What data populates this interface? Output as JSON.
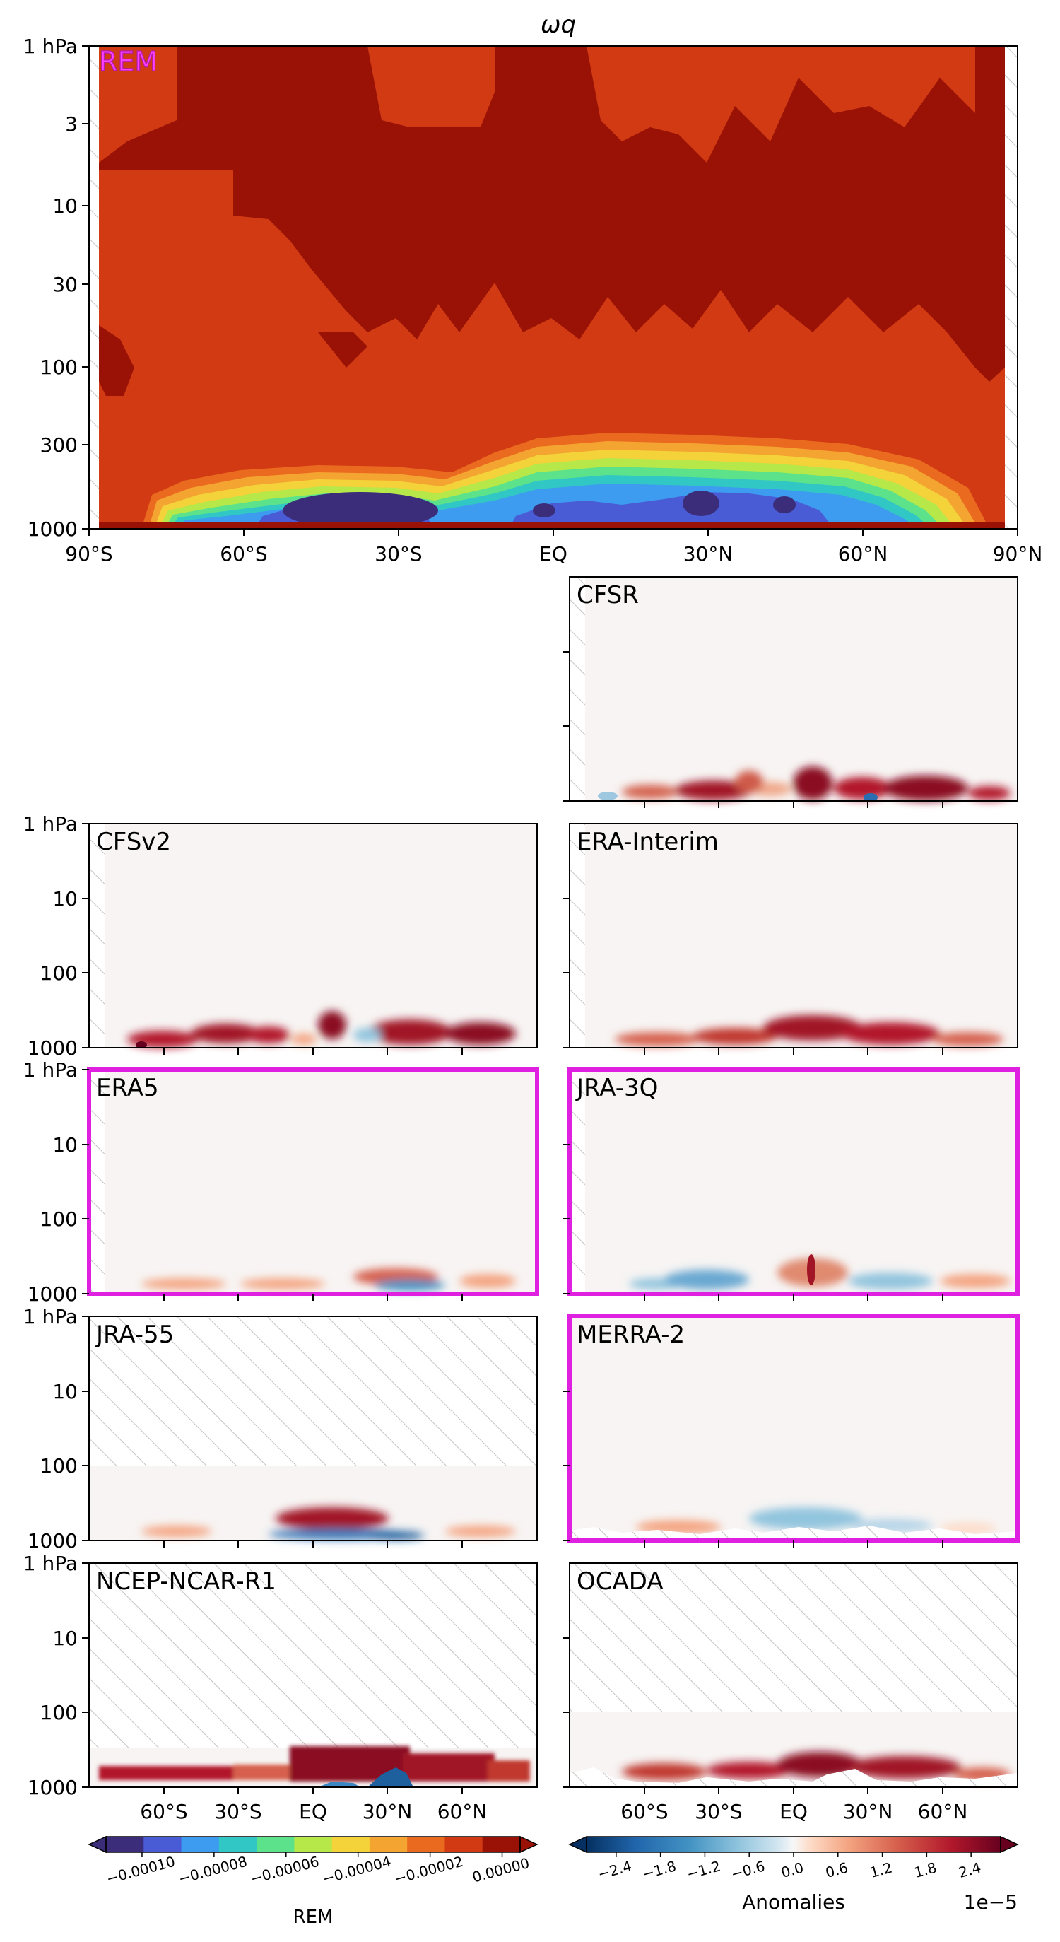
{
  "chart_data": {
    "type": "heatmap",
    "title": "ωq",
    "x_ticks": [
      "90°S",
      "60°S",
      "30°S",
      "EQ",
      "30°N",
      "60°N",
      "90°N"
    ],
    "x_ticks_small": [
      "60°S",
      "30°S",
      "EQ",
      "30°N",
      "60°N"
    ],
    "y_ticks_main": [
      "1 hPa",
      "3",
      "10",
      "30",
      "100",
      "300",
      "1000"
    ],
    "y_ticks_small": [
      "1 hPa",
      "10",
      "100",
      "1000"
    ],
    "panels": [
      {
        "name": "REM",
        "type": "filled-contour",
        "highlighted": true
      },
      {
        "name": "CFSR",
        "highlighted": false,
        "missing": "none"
      },
      {
        "name": "CFSv2",
        "highlighted": false,
        "missing": "none"
      },
      {
        "name": "ERA-Interim",
        "highlighted": false,
        "missing": "none"
      },
      {
        "name": "ERA5",
        "highlighted": true,
        "missing": "none"
      },
      {
        "name": "JRA-3Q",
        "highlighted": true,
        "missing": "none"
      },
      {
        "name": "JRA-55",
        "highlighted": false,
        "missing": "above 100 hPa"
      },
      {
        "name": "MERRA-2",
        "highlighted": true,
        "missing": "near surface"
      },
      {
        "name": "NCEP-NCAR-R1",
        "highlighted": false,
        "missing": "above 300 hPa"
      },
      {
        "name": "OCADA",
        "highlighted": false,
        "missing": "above 100 hPa"
      }
    ],
    "colorbar_rem": {
      "label": "REM",
      "ticks": [
        "−0.00010",
        "−0.00008",
        "−0.00006",
        "−0.00004",
        "−0.00002",
        "0.00000"
      ],
      "range": [
        -0.00011,
        5e-06
      ],
      "colors": [
        "#3b2d7a",
        "#4a5bd6",
        "#3d9bf0",
        "#31c7c4",
        "#5ce28a",
        "#b6e84a",
        "#f3d23a",
        "#f4a431",
        "#ea6b1f",
        "#d13a12",
        "#9a1206"
      ]
    },
    "colorbar_anom": {
      "label": "Anomalies",
      "ticks": [
        "−2.4",
        "−1.8",
        "−1.2",
        "−0.6",
        "0.0",
        "0.6",
        "1.2",
        "1.8",
        "2.4"
      ],
      "offset": "1e−5",
      "range": [
        -2.8,
        2.8
      ],
      "cmap": "RdBu_r"
    }
  }
}
